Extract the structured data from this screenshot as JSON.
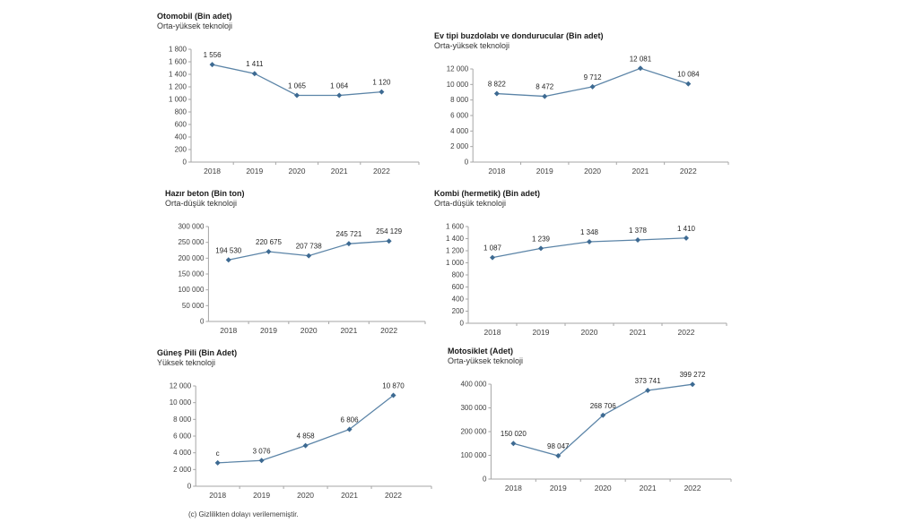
{
  "page": {
    "background": "#ffffff"
  },
  "colors": {
    "line": "#5b84a7",
    "marker": "#3d6a92",
    "axis": "#a6a6a6",
    "tick_label": "#404040",
    "value_label": "#262626"
  },
  "footer": {
    "note": "(c) Gizlilikten dolayı verilememiştir."
  },
  "chart_data": [
    {
      "type": "line",
      "title": "Otomobil (Bin adet)",
      "subtitle": "Orta-yüksek teknoloji",
      "categories": [
        "2018",
        "2019",
        "2020",
        "2021",
        "2022"
      ],
      "values": [
        1556,
        1411,
        1065,
        1064,
        1120
      ],
      "value_labels": [
        "1 556",
        "1 411",
        "1 065",
        "1 064",
        "1 120"
      ],
      "ylim": [
        0,
        1800
      ],
      "ytick_step": 200,
      "grid": false,
      "legend": "none"
    },
    {
      "type": "line",
      "title": "Ev tipi buzdolabı ve dondurucular (Bin adet)",
      "subtitle": "Orta-yüksek teknoloji",
      "categories": [
        "2018",
        "2019",
        "2020",
        "2021",
        "2022"
      ],
      "values": [
        8822,
        8472,
        9712,
        12081,
        10084
      ],
      "value_labels": [
        "8 822",
        "8 472",
        "9 712",
        "12 081",
        "10 084"
      ],
      "ylim": [
        0,
        12000
      ],
      "ytick_step": 2000,
      "grid": false,
      "legend": "none"
    },
    {
      "type": "line",
      "title": "Hazır beton (Bin ton)",
      "subtitle": "Orta-düşük teknoloji",
      "categories": [
        "2018",
        "2019",
        "2020",
        "2021",
        "2022"
      ],
      "values": [
        194530,
        220675,
        207738,
        245721,
        254129
      ],
      "value_labels": [
        "194 530",
        "220 675",
        "207 738",
        "245 721",
        "254 129"
      ],
      "ylim": [
        0,
        300000
      ],
      "ytick_step": 50000,
      "grid": false,
      "legend": "none"
    },
    {
      "type": "line",
      "title": "Kombi (hermetik) (Bin adet)",
      "subtitle": "Orta-düşük teknoloji",
      "categories": [
        "2018",
        "2019",
        "2020",
        "2021",
        "2022"
      ],
      "values": [
        1087,
        1239,
        1348,
        1378,
        1410
      ],
      "value_labels": [
        "1 087",
        "1 239",
        "1 348",
        "1 378",
        "1 410"
      ],
      "ylim": [
        0,
        1600
      ],
      "ytick_step": 200,
      "grid": false,
      "legend": "none"
    },
    {
      "type": "line",
      "title": "Güneş Pili (Bin Adet)",
      "subtitle": "Yüksek teknoloji",
      "categories": [
        "2018",
        "2019",
        "2020",
        "2021",
        "2022"
      ],
      "values": [
        2800,
        3076,
        4858,
        6806,
        10870
      ],
      "value_labels": [
        "c",
        "3 076",
        "4 858",
        "6 806",
        "10 870"
      ],
      "ylim": [
        0,
        12000
      ],
      "ytick_step": 2000,
      "grid": false,
      "legend": "none"
    },
    {
      "type": "line",
      "title": "Motosiklet (Adet)",
      "subtitle": "Orta-yüksek teknoloji",
      "categories": [
        "2018",
        "2019",
        "2020",
        "2021",
        "2022"
      ],
      "values": [
        150020,
        98047,
        268706,
        373741,
        399272
      ],
      "value_labels": [
        "150 020",
        "98 047",
        "268 706",
        "373 741",
        "399 272"
      ],
      "ylim": [
        0,
        400000
      ],
      "ytick_step": 100000,
      "grid": false,
      "legend": "none"
    }
  ]
}
